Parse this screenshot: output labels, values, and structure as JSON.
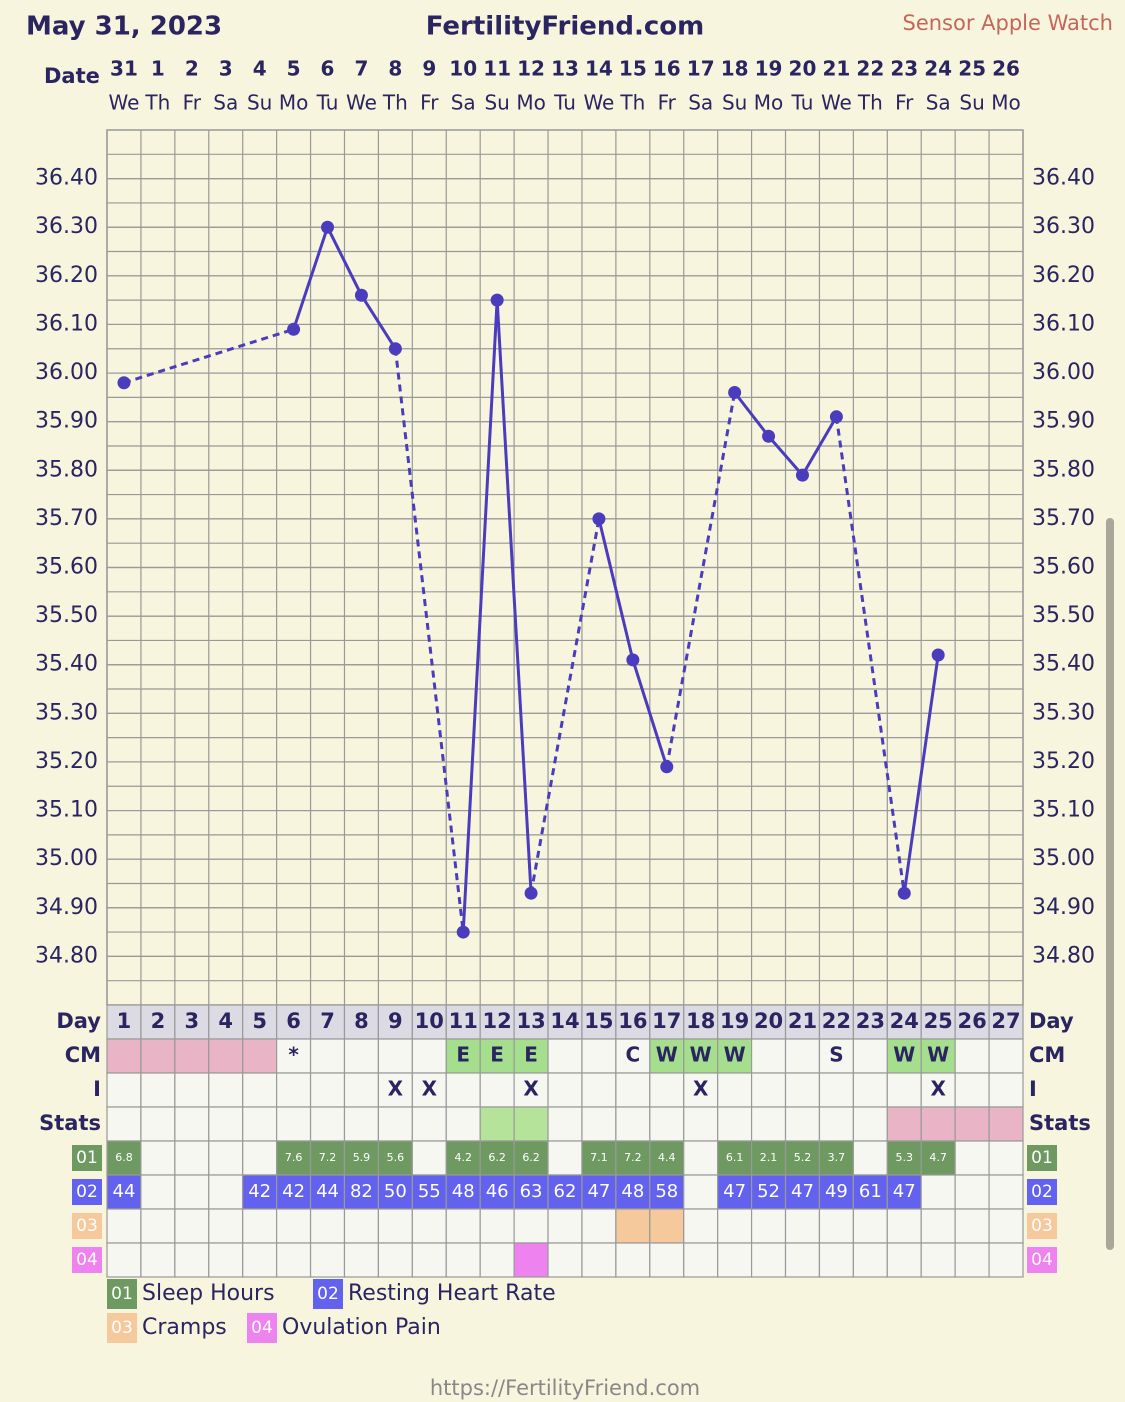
{
  "header": {
    "date": "May 31, 2023",
    "site": "FertilityFriend.com",
    "sensor": "Sensor Apple Watch",
    "date_label": "Date"
  },
  "chart_data": {
    "type": "line",
    "categories": [
      "31",
      "1",
      "2",
      "3",
      "4",
      "5",
      "6",
      "7",
      "8",
      "9",
      "10",
      "11",
      "12",
      "13",
      "14",
      "15",
      "16",
      "17",
      "18",
      "19",
      "20",
      "21",
      "22",
      "23",
      "24",
      "25",
      "26"
    ],
    "weekdays": [
      "We",
      "Th",
      "Fr",
      "Sa",
      "Su",
      "Mo",
      "Tu",
      "We",
      "Th",
      "Fr",
      "Sa",
      "Su",
      "Mo",
      "Tu",
      "We",
      "Th",
      "Fr",
      "Sa",
      "Su",
      "Mo",
      "Tu",
      "We",
      "Th",
      "Fr",
      "Sa",
      "Su",
      "Mo"
    ],
    "series": [
      {
        "color": "#4a3cbc",
        "values": [
          35.98,
          null,
          null,
          null,
          null,
          36.09,
          36.3,
          36.16,
          36.05,
          null,
          34.85,
          36.15,
          34.93,
          null,
          35.7,
          35.41,
          35.19,
          null,
          35.96,
          35.87,
          35.79,
          35.91,
          null,
          34.93,
          35.42,
          null,
          null
        ]
      }
    ],
    "ylim": [
      34.7,
      36.5
    ],
    "yticks": [
      {
        "value": 36.4,
        "label": "36.40"
      },
      {
        "value": 36.3,
        "label": "36.30"
      },
      {
        "value": 36.2,
        "label": "36.20"
      },
      {
        "value": 36.1,
        "label": "36.10"
      },
      {
        "value": 36.0,
        "label": "36.00"
      },
      {
        "value": 35.9,
        "label": "35.90"
      },
      {
        "value": 35.8,
        "label": "35.80"
      },
      {
        "value": 35.7,
        "label": "35.70"
      },
      {
        "value": 35.6,
        "label": "35.60"
      },
      {
        "value": 35.5,
        "label": "35.50"
      },
      {
        "value": 35.4,
        "label": "35.40"
      },
      {
        "value": 35.3,
        "label": "35.30"
      },
      {
        "value": 35.2,
        "label": "35.20"
      },
      {
        "value": 35.1,
        "label": "35.10"
      },
      {
        "value": 35.0,
        "label": "35.00"
      },
      {
        "value": 34.9,
        "label": "34.90"
      },
      {
        "value": 34.8,
        "label": "34.80"
      }
    ],
    "grid": true
  },
  "table": {
    "row_labels": [
      "Day",
      "CM",
      "I",
      "Stats"
    ],
    "days": [
      1,
      2,
      3,
      4,
      5,
      6,
      7,
      8,
      9,
      10,
      11,
      12,
      13,
      14,
      15,
      16,
      17,
      18,
      19,
      20,
      21,
      22,
      23,
      24,
      25,
      26,
      27
    ],
    "cm": [
      null,
      null,
      null,
      null,
      null,
      "*",
      null,
      null,
      null,
      null,
      "E",
      "E",
      "E",
      null,
      null,
      "C",
      "W",
      "W",
      "W",
      null,
      null,
      "S",
      null,
      "W",
      "W",
      null,
      null
    ],
    "cm_fill": [
      "#e8b4c6",
      "#e8b4c6",
      "#e8b4c6",
      "#e8b4c6",
      "#e8b4c6",
      null,
      null,
      null,
      null,
      null,
      "#a5df8e",
      "#a5df8e",
      "#a5df8e",
      null,
      null,
      null,
      "#a5df8e",
      "#a5df8e",
      "#a5df8e",
      null,
      null,
      null,
      null,
      "#a5df8e",
      "#a5df8e",
      null,
      null
    ],
    "i": [
      null,
      null,
      null,
      null,
      null,
      null,
      null,
      null,
      "X",
      "X",
      null,
      null,
      "X",
      null,
      null,
      null,
      null,
      "X",
      null,
      null,
      null,
      null,
      null,
      null,
      "X",
      null,
      null
    ],
    "stats_fill": [
      null,
      null,
      null,
      null,
      null,
      null,
      null,
      null,
      null,
      null,
      null,
      "#b5e39a",
      "#b5e39a",
      null,
      null,
      null,
      null,
      null,
      null,
      null,
      null,
      null,
      null,
      "#e8b4c6",
      "#e8b4c6",
      "#e8b4c6",
      "#e8b4c6"
    ],
    "tracks": [
      {
        "code": "01",
        "name": "Sleep Hours",
        "color": "#6e9a62",
        "values": [
          6.8,
          null,
          null,
          null,
          null,
          7.6,
          7.2,
          5.9,
          5.6,
          null,
          4.2,
          6.2,
          6.2,
          null,
          7.1,
          7.2,
          4.4,
          null,
          6.1,
          2.1,
          5.2,
          3.7,
          null,
          5.3,
          4.7,
          null,
          null
        ]
      },
      {
        "code": "02",
        "name": "Resting Heart Rate",
        "color": "#6262ee",
        "values": [
          44,
          null,
          null,
          null,
          42,
          42,
          44,
          82,
          50,
          55,
          48,
          46,
          63,
          62,
          47,
          48,
          58,
          null,
          47,
          52,
          47,
          49,
          61,
          47,
          null,
          null,
          null
        ]
      },
      {
        "code": "03",
        "name": "Cramps",
        "color": "#f5c99c",
        "values": [
          null,
          null,
          null,
          null,
          null,
          null,
          null,
          null,
          null,
          null,
          null,
          null,
          null,
          null,
          null,
          true,
          true,
          null,
          null,
          null,
          null,
          null,
          null,
          null,
          null,
          null,
          null
        ]
      },
      {
        "code": "04",
        "name": "Ovulation Pain",
        "color": "#ee82ee",
        "values": [
          null,
          null,
          null,
          null,
          null,
          null,
          null,
          null,
          null,
          null,
          null,
          null,
          true,
          null,
          null,
          null,
          null,
          null,
          null,
          null,
          null,
          null,
          null,
          null,
          null,
          null,
          null
        ]
      }
    ]
  },
  "footer": "https://FertilityFriend.com"
}
